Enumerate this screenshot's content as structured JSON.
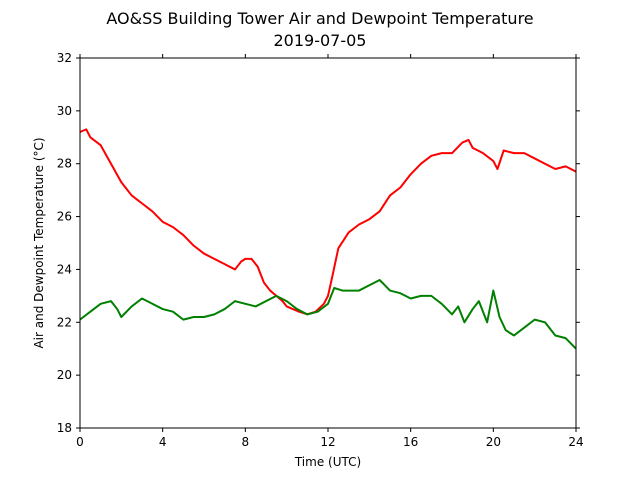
{
  "chart_data": {
    "type": "line",
    "title": "AO&SS Building Tower Air and Dewpoint Temperature",
    "subtitle": "2019-07-05",
    "xlabel": "Time (UTC)",
    "ylabel": "Air and Dewpoint Temperature (°C)",
    "xlim": [
      0,
      24
    ],
    "ylim": [
      18,
      32
    ],
    "xticks": [
      0,
      4,
      8,
      12,
      16,
      20,
      24
    ],
    "yticks": [
      18,
      20,
      22,
      24,
      26,
      28,
      30,
      32
    ],
    "grid": false,
    "series": [
      {
        "color": "#ff0000",
        "x": [
          0,
          0.3,
          0.5,
          1.0,
          1.5,
          2.0,
          2.5,
          3.0,
          3.5,
          4.0,
          4.5,
          5.0,
          5.5,
          6.0,
          6.5,
          7.0,
          7.5,
          7.8,
          8.0,
          8.3,
          8.6,
          8.9,
          9.2,
          9.5,
          9.8,
          10.0,
          10.3,
          10.6,
          11.0,
          11.4,
          11.8,
          12.0,
          12.2,
          12.5,
          13.0,
          13.5,
          14.0,
          14.5,
          15.0,
          15.5,
          16.0,
          16.5,
          17.0,
          17.5,
          18.0,
          18.5,
          18.8,
          19.0,
          19.5,
          20.0,
          20.2,
          20.5,
          21.0,
          21.5,
          22.0,
          22.5,
          23.0,
          23.5,
          24.0
        ],
        "y": [
          29.2,
          29.3,
          29.0,
          28.7,
          28.0,
          27.3,
          26.8,
          26.5,
          26.2,
          25.8,
          25.6,
          25.3,
          24.9,
          24.6,
          24.4,
          24.2,
          24.0,
          24.3,
          24.4,
          24.4,
          24.1,
          23.5,
          23.2,
          23.0,
          22.8,
          22.6,
          22.5,
          22.4,
          22.3,
          22.4,
          22.7,
          23.0,
          23.7,
          24.8,
          25.4,
          25.7,
          25.9,
          26.2,
          26.8,
          27.1,
          27.6,
          28.0,
          28.3,
          28.4,
          28.4,
          28.8,
          28.9,
          28.6,
          28.4,
          28.1,
          27.8,
          28.5,
          28.4,
          28.4,
          28.2,
          28.0,
          27.8,
          27.9,
          27.7
        ]
      },
      {
        "color": "#008000",
        "x": [
          0,
          0.5,
          1.0,
          1.5,
          1.8,
          2.0,
          2.5,
          3.0,
          3.5,
          4.0,
          4.5,
          5.0,
          5.5,
          6.0,
          6.5,
          7.0,
          7.5,
          8.0,
          8.5,
          9.0,
          9.5,
          10.0,
          10.5,
          11.0,
          11.5,
          12.0,
          12.3,
          12.7,
          13.0,
          13.5,
          14.0,
          14.5,
          15.0,
          15.5,
          16.0,
          16.5,
          17.0,
          17.5,
          18.0,
          18.3,
          18.6,
          19.0,
          19.3,
          19.7,
          20.0,
          20.3,
          20.6,
          21.0,
          21.5,
          22.0,
          22.5,
          23.0,
          23.5,
          24.0
        ],
        "y": [
          22.1,
          22.4,
          22.7,
          22.8,
          22.5,
          22.2,
          22.6,
          22.9,
          22.7,
          22.5,
          22.4,
          22.1,
          22.2,
          22.2,
          22.3,
          22.5,
          22.8,
          22.7,
          22.6,
          22.8,
          23.0,
          22.8,
          22.5,
          22.3,
          22.4,
          22.7,
          23.3,
          23.2,
          23.2,
          23.2,
          23.4,
          23.6,
          23.2,
          23.1,
          22.9,
          23.0,
          23.0,
          22.7,
          22.3,
          22.6,
          22.0,
          22.5,
          22.8,
          22.0,
          23.2,
          22.2,
          21.7,
          21.5,
          21.8,
          22.1,
          22.0,
          21.5,
          21.4,
          21.0
        ]
      }
    ]
  }
}
